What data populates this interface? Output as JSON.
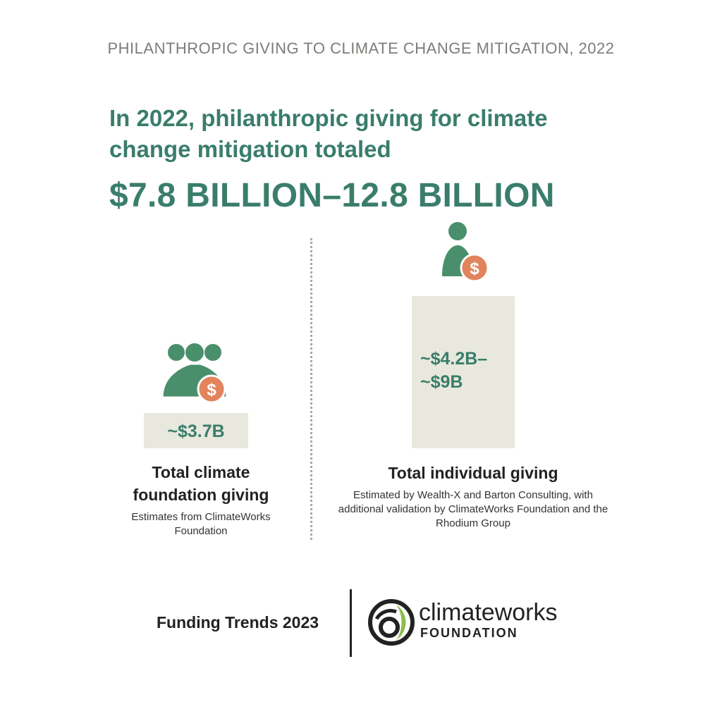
{
  "kicker": "PHILANTHROPIC GIVING TO CLIMATE CHANGE MITIGATION, 2022",
  "headline": "In 2022, philanthropic giving for climate change mitigation totaled",
  "total": "$7.8 BILLION–12.8 BILLION",
  "colors": {
    "accent": "#3a7d6b",
    "icon_green": "#4a8f6c",
    "coin": "#e1845d",
    "bar": "#e8e8de",
    "kicker": "#7c7c78"
  },
  "chart_data": {
    "type": "bar",
    "categories": [
      "Total climate foundation giving",
      "Total individual giving"
    ],
    "values_billion_usd": [
      [
        3.7,
        3.7
      ],
      [
        4.2,
        9.0
      ]
    ],
    "value_labels": [
      "~$3.7B",
      "~$4.2B–\n~$9B"
    ],
    "notes": [
      "Estimates from ClimateWorks Foundation",
      "Estimated by Wealth-X and Barton Consulting, with additional validation by ClimateWorks Foundation and the Rhodium Group"
    ],
    "icons": [
      "people-with-coin-icon",
      "person-with-coin-icon"
    ]
  },
  "captions": {
    "foundation_title": "Total climate foundation giving",
    "foundation_note": "Estimates from ClimateWorks Foundation",
    "individual_title": "Total individual giving",
    "individual_note": "Estimated by Wealth-X and Barton Consulting, with additional validation by ClimateWorks Foundation and the Rhodium Group"
  },
  "footer": {
    "report": "Funding Trends 2023",
    "logo_word": "climateworks",
    "logo_sub": "FOUNDATION"
  }
}
